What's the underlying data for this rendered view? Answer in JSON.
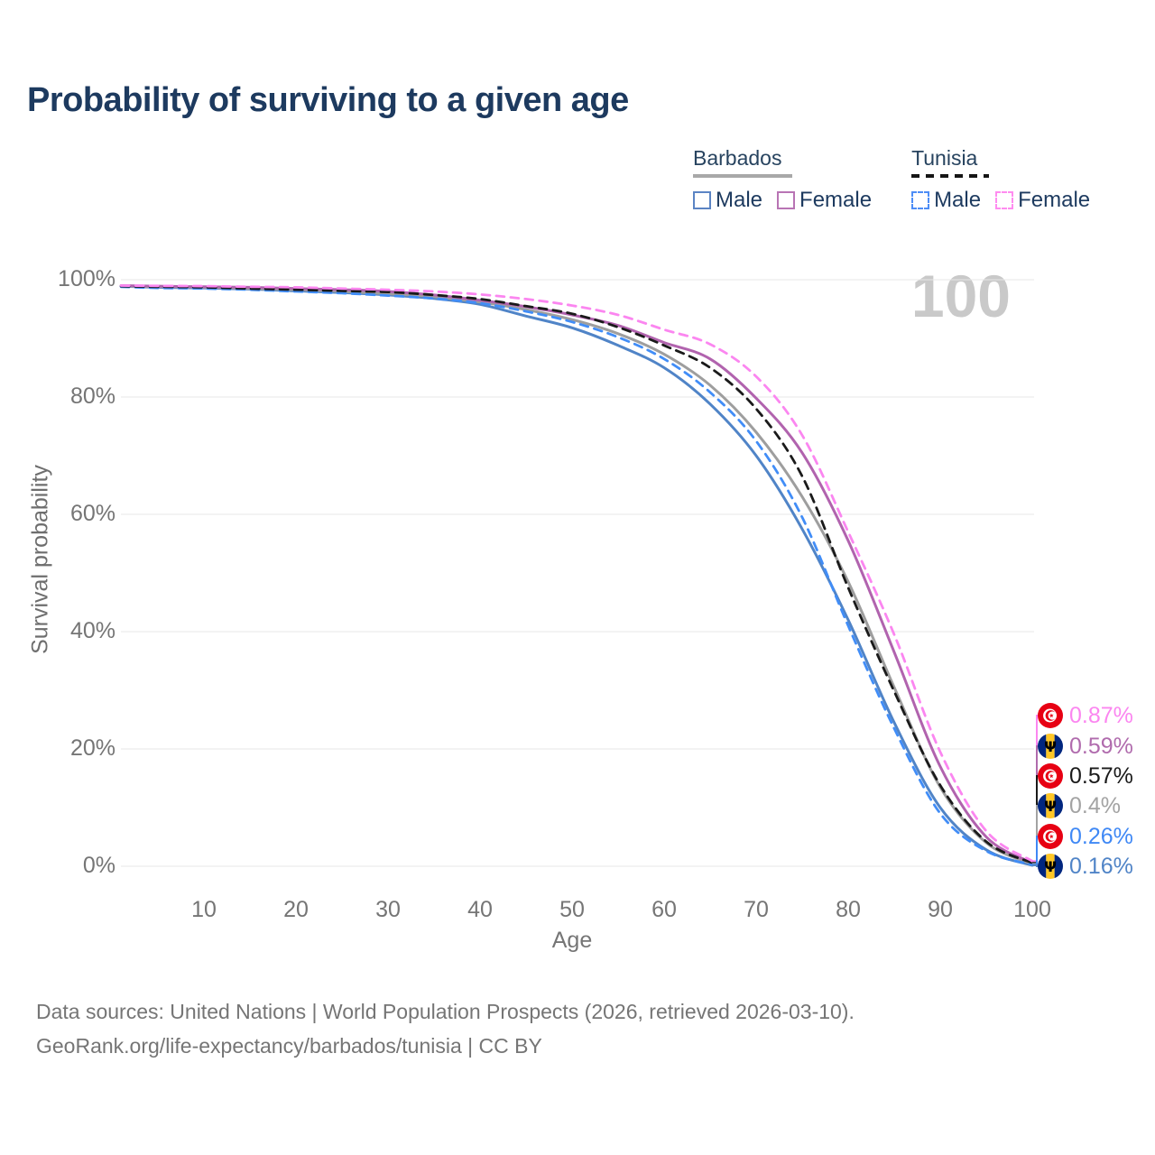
{
  "legend": {
    "groups": [
      {
        "name": "Barbados",
        "overall_style": "solid",
        "overall_color": "#a8a8a8",
        "items": [
          {
            "label": "Male",
            "style": "solid",
            "color": "#5b84c4"
          },
          {
            "label": "Female",
            "style": "solid",
            "color": "#b874b4"
          }
        ]
      },
      {
        "name": "Tunisia",
        "overall_style": "dashed",
        "overall_color": "#151515",
        "items": [
          {
            "label": "Male",
            "style": "dashed",
            "color": "#4d8df6"
          },
          {
            "label": "Female",
            "style": "dashed",
            "color": "#ff8cf0"
          }
        ]
      }
    ]
  },
  "footer": {
    "line1": "Data sources: United Nations | World Population Prospects (2026, retrieved 2026-03-10).",
    "line2": "GeoRank.org/life-expectancy/barbados/tunisia | CC BY"
  },
  "chart_data": {
    "type": "line",
    "title": "Probability of surviving to a given age",
    "xlabel": "Age",
    "ylabel": "Survival probability",
    "age_counter": "100",
    "xlim": [
      1,
      100
    ],
    "ylim": [
      0,
      100
    ],
    "xticks": [
      10,
      20,
      30,
      40,
      50,
      60,
      70,
      80,
      90,
      100
    ],
    "yticks": [
      0,
      20,
      40,
      60,
      80,
      100
    ],
    "grid": "horizontal",
    "legend_position": "top-right",
    "ages": [
      1,
      5,
      10,
      15,
      20,
      25,
      30,
      35,
      40,
      45,
      50,
      55,
      60,
      65,
      70,
      75,
      80,
      85,
      90,
      95,
      100
    ],
    "series": [
      {
        "name": "Barbados Male",
        "country": "Barbados",
        "group": "Male",
        "style": "solid",
        "color": "#5084c7",
        "end_label": "0.16%",
        "values": [
          98.9,
          98.7,
          98.6,
          98.4,
          98.1,
          97.8,
          97.4,
          96.8,
          95.8,
          93.8,
          91.8,
          88.8,
          85.0,
          78.8,
          70.0,
          57.5,
          42.0,
          24.5,
          10.0,
          2.8,
          0.16
        ]
      },
      {
        "name": "Barbados Overall",
        "country": "Barbados",
        "group": "Overall",
        "style": "solid",
        "color": "#9e9e9e",
        "end_label": "0.4%",
        "values": [
          98.9,
          98.8,
          98.7,
          98.5,
          98.3,
          98.0,
          97.6,
          97.1,
          96.2,
          94.9,
          93.2,
          90.8,
          87.3,
          82.0,
          74.0,
          63.0,
          48.5,
          30.5,
          13.5,
          4.0,
          0.4
        ]
      },
      {
        "name": "Barbados Female",
        "country": "Barbados",
        "group": "Female",
        "style": "solid",
        "color": "#b163ae",
        "end_label": "0.59%",
        "values": [
          99.0,
          98.9,
          98.8,
          98.7,
          98.5,
          98.3,
          98.0,
          97.4,
          96.5,
          95.4,
          94.0,
          92.2,
          89.3,
          86.5,
          79.8,
          70.5,
          55.5,
          36.5,
          17.0,
          5.0,
          0.59
        ]
      },
      {
        "name": "Tunisia Male",
        "country": "Tunisia",
        "group": "Male",
        "style": "dashed",
        "color": "#418df7",
        "end_label": "0.26%",
        "values": [
          98.8,
          98.6,
          98.5,
          98.3,
          98.0,
          97.7,
          97.3,
          96.8,
          96.0,
          94.6,
          92.8,
          90.2,
          86.5,
          80.8,
          72.5,
          59.5,
          41.0,
          23.5,
          9.0,
          2.6,
          0.26
        ]
      },
      {
        "name": "Tunisia Overall",
        "country": "Tunisia",
        "group": "Overall",
        "style": "dashed",
        "color": "#1a1a1a",
        "end_label": "0.57%",
        "values": [
          98.9,
          98.8,
          98.7,
          98.5,
          98.3,
          98.1,
          97.9,
          97.4,
          96.7,
          95.5,
          94.2,
          91.9,
          88.8,
          85.0,
          78.0,
          66.5,
          47.5,
          29.8,
          13.8,
          4.2,
          0.57
        ]
      },
      {
        "name": "Tunisia Female",
        "country": "Tunisia",
        "group": "Female",
        "style": "dashed",
        "color": "#fb86f0",
        "end_label": "0.87%",
        "values": [
          99.0,
          98.95,
          98.9,
          98.8,
          98.7,
          98.5,
          98.3,
          98.0,
          97.5,
          96.7,
          95.6,
          94.0,
          91.5,
          89.0,
          83.5,
          73.5,
          57.0,
          39.5,
          19.5,
          6.0,
          0.87
        ]
      }
    ],
    "end_labels": [
      {
        "flag": "tunisia",
        "value": "0.87%",
        "color": "#fb86f0",
        "series": "Tunisia Female"
      },
      {
        "flag": "barbados",
        "value": "0.59%",
        "color": "#b06bad",
        "series": "Barbados Female"
      },
      {
        "flag": "tunisia",
        "value": "0.57%",
        "color": "#1a1a1a",
        "series": "Tunisia Overall"
      },
      {
        "flag": "barbados",
        "value": "0.4%",
        "color": "#a3a3a3",
        "series": "Barbados Overall"
      },
      {
        "flag": "tunisia",
        "value": "0.26%",
        "color": "#3f88f5",
        "series": "Tunisia Male"
      },
      {
        "flag": "barbados",
        "value": "0.16%",
        "color": "#5084c7",
        "series": "Barbados Male"
      }
    ]
  }
}
